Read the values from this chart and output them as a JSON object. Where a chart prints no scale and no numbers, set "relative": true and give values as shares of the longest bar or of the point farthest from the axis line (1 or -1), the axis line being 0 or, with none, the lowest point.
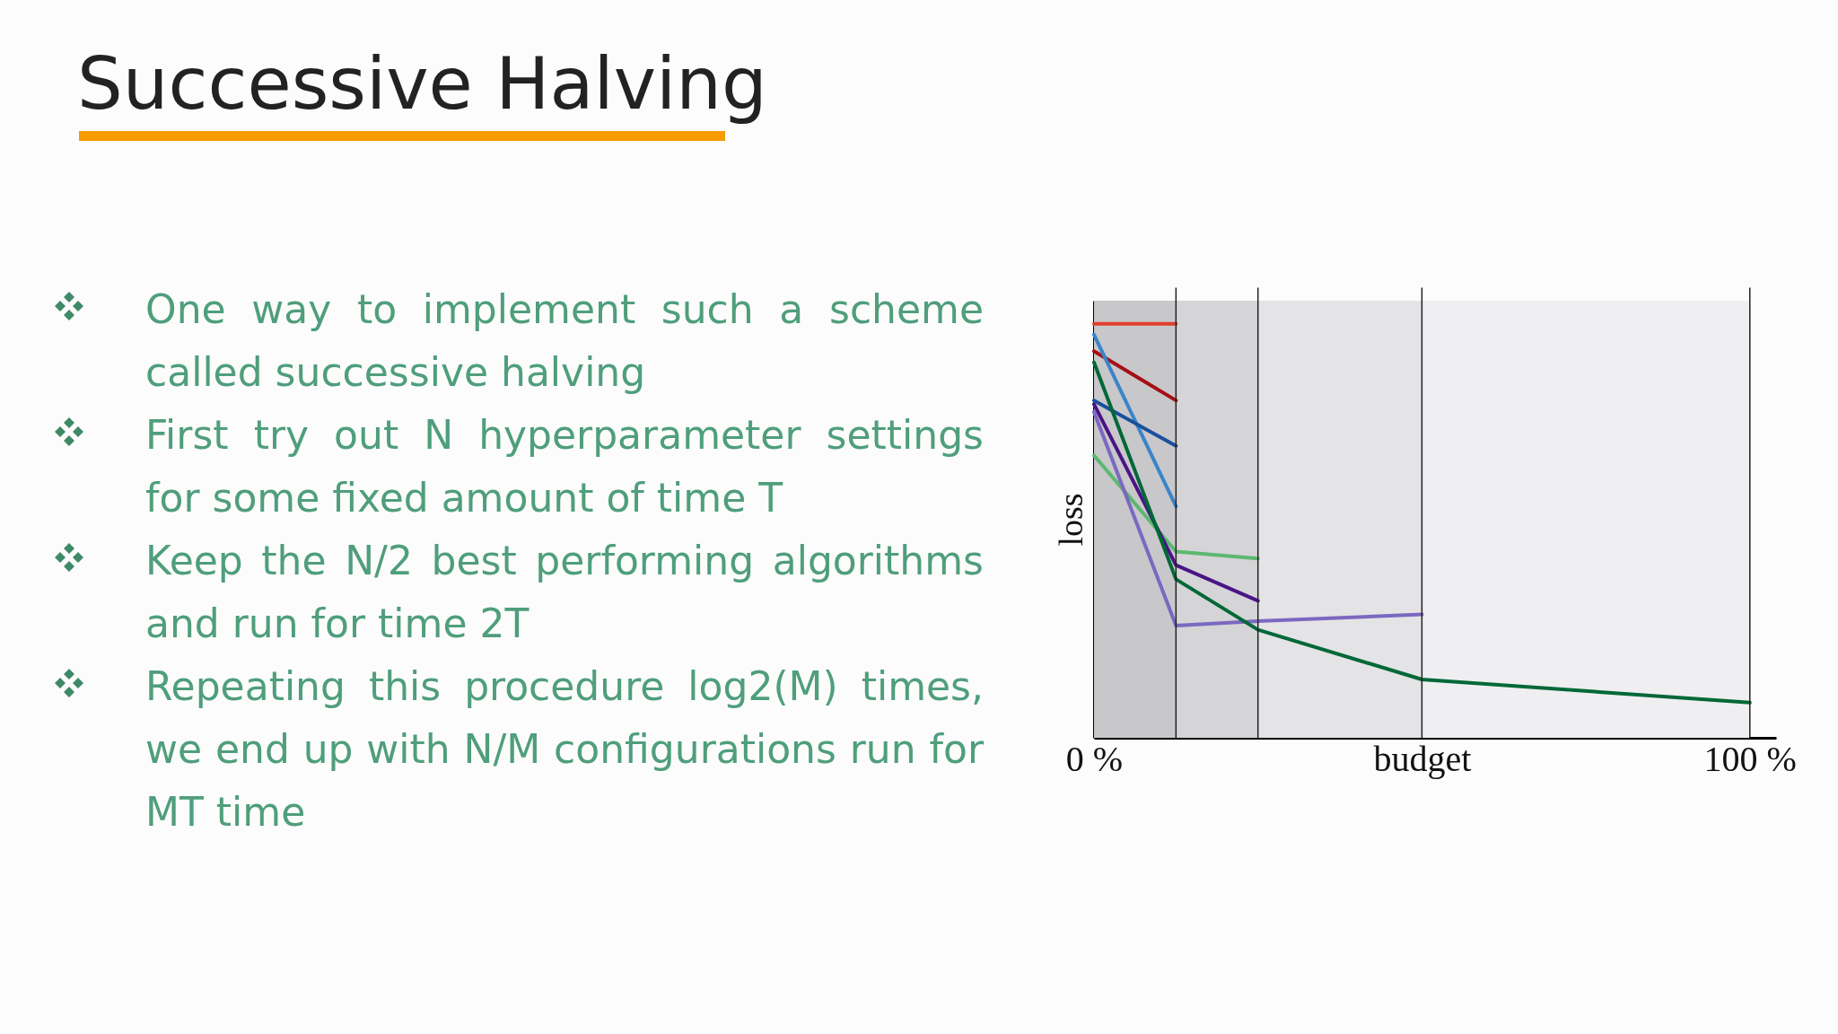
{
  "chart_data": {
    "type": "line",
    "title": "Successive Halving",
    "annotations": [
      "One way to implement such a scheme called successive halving",
      "First try out N hyperparameter settings for some fixed amount of time T",
      "Keep the N/2 best performing algorithms and run for time 2T",
      "Repeating this procedure log2(M) times, we end up with N/M configurations run for MT time"
    ],
    "xlabel": null,
    "ylabel": "loss",
    "relative": true,
    "xlim": [
      0,
      104
    ],
    "xticks": [
      {
        "value": 0,
        "label": "0 %"
      },
      {
        "value": 50,
        "label": "budget"
      },
      {
        "value": 100,
        "label": "100 %"
      }
    ],
    "tick_labels": "x",
    "grid": false,
    "marker": "none",
    "line_style": "solid",
    "bands": [
      {
        "axis": "x",
        "from": 0,
        "to": 12.5,
        "color": "#c8c7ca"
      },
      {
        "axis": "x",
        "from": 12.5,
        "to": 25,
        "color": "#d5d4d7"
      },
      {
        "axis": "x",
        "from": 25,
        "to": 50,
        "color": "#e4e3e6"
      },
      {
        "axis": "x",
        "from": 50,
        "to": 100,
        "color": "#efeef1"
      }
    ],
    "ref_lines": [
      {
        "axis": "x",
        "value": 12.5,
        "color": "#222222"
      },
      {
        "axis": "x",
        "value": 25,
        "color": "#222222"
      },
      {
        "axis": "x",
        "value": 50,
        "color": "#222222"
      },
      {
        "axis": "x",
        "value": 100,
        "color": "#222222"
      }
    ],
    "series": [
      {
        "color": "#e0402a",
        "x": [
          0,
          12.5
        ],
        "values": [
          1,
          1
        ]
      },
      {
        "color": "#a50f15",
        "x": [
          0,
          12.5
        ],
        "values": [
          0.934,
          0.815
        ]
      },
      {
        "color": "#3a85c8",
        "x": [
          0,
          12.5
        ],
        "values": [
          0.974,
          0.559
        ]
      },
      {
        "color": "#1a4f9c",
        "x": [
          0,
          12.5
        ],
        "values": [
          0.815,
          0.705
        ]
      },
      {
        "color": "#5cb870",
        "x": [
          0,
          12.5,
          25
        ],
        "values": [
          0.682,
          0.45,
          0.433
        ]
      },
      {
        "color": "#4a1486",
        "x": [
          0,
          12.5,
          25
        ],
        "values": [
          0.806,
          0.417,
          0.331
        ]
      },
      {
        "color": "#7b68c0",
        "x": [
          0,
          12.5,
          25,
          50
        ],
        "values": [
          0.787,
          0.271,
          0.282,
          0.298
        ]
      },
      {
        "color": "#006837",
        "x": [
          0,
          12.5,
          25,
          50,
          100
        ],
        "values": [
          0.907,
          0.383,
          0.261,
          0.141,
          0.085
        ]
      }
    ]
  }
}
